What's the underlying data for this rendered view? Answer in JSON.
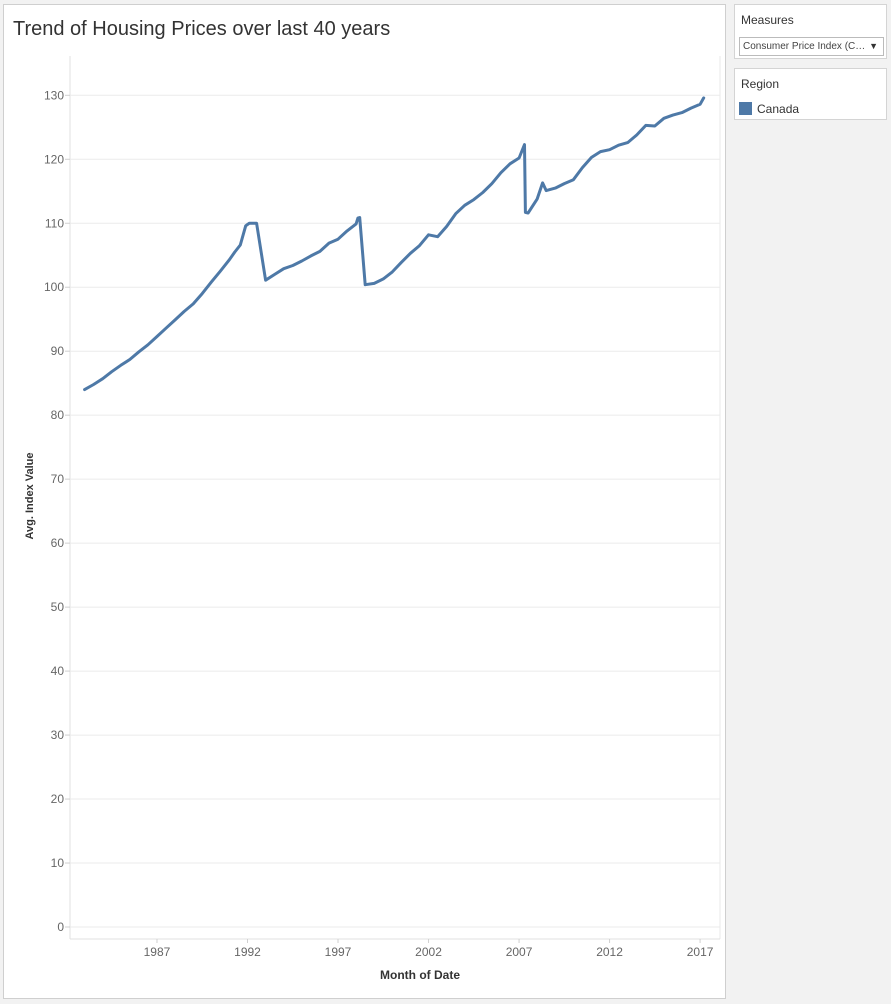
{
  "chart_data": {
    "type": "line",
    "title": "Trend of Housing Prices over last 40 years",
    "xlabel": "Month of Date",
    "ylabel": "Avg. Index Value",
    "x_ticks": [
      1987,
      1992,
      1997,
      2002,
      2007,
      2012,
      2017
    ],
    "y_ticks": [
      0,
      10,
      20,
      30,
      40,
      50,
      60,
      70,
      80,
      90,
      100,
      110,
      120,
      130
    ],
    "xlim": [
      1983.3,
      2018.1
    ],
    "ylim": [
      0,
      135
    ],
    "grid": true,
    "series": [
      {
        "name": "Canada",
        "color": "#4e79a7",
        "x": [
          1983.0,
          1983.5,
          1984.0,
          1984.5,
          1985.0,
          1985.5,
          1986.0,
          1986.5,
          1987.0,
          1987.5,
          1988.0,
          1988.5,
          1989.0,
          1989.5,
          1990.0,
          1990.5,
          1991.0,
          1991.3,
          1991.6,
          1991.9,
          1992.0,
          1992.1,
          1992.5,
          1993.0,
          1993.5,
          1994.0,
          1994.5,
          1995.0,
          1995.5,
          1996.0,
          1996.5,
          1997.0,
          1997.5,
          1998.0,
          1998.1,
          1998.2,
          1998.5,
          1999.0,
          1999.5,
          2000.0,
          2000.5,
          2001.0,
          2001.5,
          2002.0,
          2002.5,
          2003.0,
          2003.5,
          2004.0,
          2004.5,
          2005.0,
          2005.5,
          2006.0,
          2006.5,
          2007.0,
          2007.3,
          2007.35,
          2007.5,
          2008.0,
          2008.3,
          2008.5,
          2009.0,
          2009.5,
          2010.0,
          2010.5,
          2011.0,
          2011.5,
          2012.0,
          2012.5,
          2013.0,
          2013.5,
          2014.0,
          2014.5,
          2015.0,
          2015.5,
          2016.0,
          2016.5,
          2017.0,
          2017.2
        ],
        "values": [
          84.0,
          84.8,
          85.7,
          86.8,
          87.8,
          88.7,
          89.9,
          91.0,
          92.3,
          93.6,
          94.9,
          96.2,
          97.4,
          99.0,
          100.8,
          102.5,
          104.3,
          105.5,
          106.6,
          109.6,
          109.8,
          110.0,
          110.0,
          101.1,
          102.0,
          102.9,
          103.4,
          104.1,
          104.9,
          105.6,
          106.9,
          107.5,
          108.8,
          109.9,
          110.8,
          110.9,
          100.4,
          100.6,
          101.3,
          102.4,
          103.9,
          105.3,
          106.5,
          108.2,
          107.9,
          109.5,
          111.5,
          112.8,
          113.7,
          114.8,
          116.2,
          117.9,
          119.3,
          120.2,
          122.3,
          111.7,
          111.6,
          113.8,
          116.3,
          115.1,
          115.5,
          116.2,
          116.8,
          118.7,
          120.3,
          121.2,
          121.5,
          122.2,
          122.6,
          123.8,
          125.3,
          125.2,
          126.4,
          126.9,
          127.3,
          128.0,
          128.6,
          129.6
        ]
      }
    ]
  },
  "filters": {
    "measures_label": "Measures",
    "measures_value": "Consumer Price Index (CPI)",
    "region_label": "Region",
    "region_item": "Canada"
  }
}
